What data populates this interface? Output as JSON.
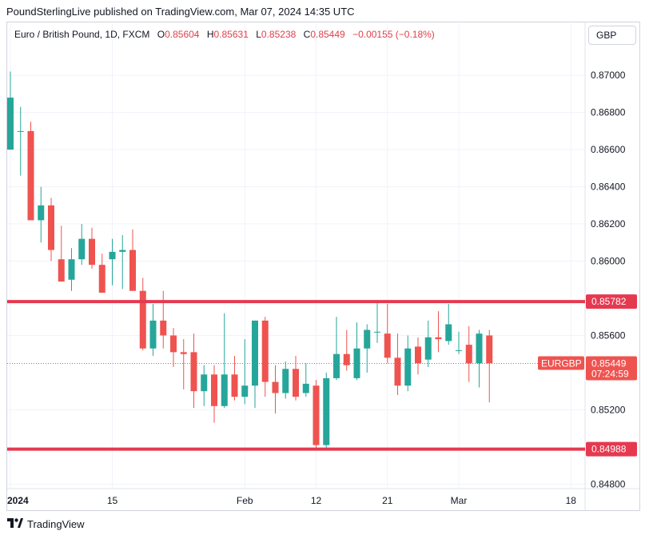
{
  "header": {
    "published": "PoundSterlingLive published on TradingView.com, Mar 07, 2024 14:35 UTC"
  },
  "legend": {
    "symbol": "Euro / British Pound, 1D, FXCM",
    "o_label": "O",
    "o_value": "0.85604",
    "h_label": "H",
    "h_value": "0.85631",
    "l_label": "L",
    "l_value": "0.85238",
    "c_label": "C",
    "c_value": "0.85449",
    "change": "−0.00155 (−0.18%)"
  },
  "currency_button": "GBP",
  "branding": {
    "name": "TradingView"
  },
  "colors": {
    "up": "#26a69a",
    "down": "#ef5350",
    "level": "#e53950",
    "grid": "#f0f3fa",
    "text": "#131722"
  },
  "chart_data": {
    "type": "candlestick",
    "symbol": "EURGBP",
    "ylim": [
      0.8478,
      0.8716
    ],
    "y_ticks": [
      "0.84800",
      "0.85200",
      "0.85600",
      "0.86000",
      "0.86200",
      "0.86400",
      "0.86600",
      "0.86800",
      "0.87000"
    ],
    "x_ticks": [
      {
        "label": "2024",
        "index": 0
      },
      {
        "label": "15",
        "index": 10
      },
      {
        "label": "Feb",
        "index": 23
      },
      {
        "label": "12",
        "index": 30
      },
      {
        "label": "21",
        "index": 37
      },
      {
        "label": "Mar",
        "index": 44
      },
      {
        "label": "18",
        "index": 55
      }
    ],
    "horizontal_levels": [
      {
        "value": 0.85782,
        "label": "0.85782"
      },
      {
        "value": 0.84988,
        "label": "0.84988"
      }
    ],
    "last_price": {
      "value": 0.85449,
      "symbol_label": "EURGBP",
      "price_label": "0.85449",
      "countdown": "07:24:59"
    },
    "candles": [
      {
        "o": 0.866,
        "h": 0.8702,
        "l": 0.866,
        "c": 0.8688
      },
      {
        "o": 0.867,
        "h": 0.8683,
        "l": 0.8646,
        "c": 0.867
      },
      {
        "o": 0.867,
        "h": 0.8675,
        "l": 0.8622,
        "c": 0.8622
      },
      {
        "o": 0.8622,
        "h": 0.864,
        "l": 0.861,
        "c": 0.863
      },
      {
        "o": 0.863,
        "h": 0.8634,
        "l": 0.86,
        "c": 0.8606
      },
      {
        "o": 0.8601,
        "h": 0.8619,
        "l": 0.8589,
        "c": 0.8589
      },
      {
        "o": 0.859,
        "h": 0.8607,
        "l": 0.8584,
        "c": 0.8601
      },
      {
        "o": 0.8601,
        "h": 0.862,
        "l": 0.8598,
        "c": 0.8612
      },
      {
        "o": 0.8612,
        "h": 0.8618,
        "l": 0.8596,
        "c": 0.8598
      },
      {
        "o": 0.8598,
        "h": 0.8604,
        "l": 0.8583,
        "c": 0.8583
      },
      {
        "o": 0.8601,
        "h": 0.8612,
        "l": 0.8587,
        "c": 0.8605
      },
      {
        "o": 0.8605,
        "h": 0.8614,
        "l": 0.8585,
        "c": 0.8606
      },
      {
        "o": 0.8606,
        "h": 0.8617,
        "l": 0.8584,
        "c": 0.8584
      },
      {
        "o": 0.8584,
        "h": 0.8591,
        "l": 0.8552,
        "c": 0.8553
      },
      {
        "o": 0.8553,
        "h": 0.8577,
        "l": 0.8549,
        "c": 0.8568
      },
      {
        "o": 0.8568,
        "h": 0.8584,
        "l": 0.8553,
        "c": 0.856
      },
      {
        "o": 0.856,
        "h": 0.8564,
        "l": 0.8543,
        "c": 0.8551
      },
      {
        "o": 0.8551,
        "h": 0.8558,
        "l": 0.8531,
        "c": 0.855
      },
      {
        "o": 0.8551,
        "h": 0.8561,
        "l": 0.8521,
        "c": 0.853
      },
      {
        "o": 0.853,
        "h": 0.8544,
        "l": 0.8522,
        "c": 0.8539
      },
      {
        "o": 0.8539,
        "h": 0.8544,
        "l": 0.8513,
        "c": 0.8522
      },
      {
        "o": 0.8522,
        "h": 0.8572,
        "l": 0.8521,
        "c": 0.8539
      },
      {
        "o": 0.8539,
        "h": 0.8549,
        "l": 0.8525,
        "c": 0.8527
      },
      {
        "o": 0.8527,
        "h": 0.8558,
        "l": 0.8523,
        "c": 0.8533
      },
      {
        "o": 0.8533,
        "h": 0.8568,
        "l": 0.8521,
        "c": 0.8568
      },
      {
        "o": 0.8568,
        "h": 0.857,
        "l": 0.8527,
        "c": 0.8535
      },
      {
        "o": 0.8535,
        "h": 0.8544,
        "l": 0.8518,
        "c": 0.8529
      },
      {
        "o": 0.8529,
        "h": 0.8546,
        "l": 0.8526,
        "c": 0.8542
      },
      {
        "o": 0.8542,
        "h": 0.8549,
        "l": 0.8525,
        "c": 0.8527
      },
      {
        "o": 0.8529,
        "h": 0.8545,
        "l": 0.8527,
        "c": 0.8534
      },
      {
        "o": 0.8533,
        "h": 0.8536,
        "l": 0.8499,
        "c": 0.8501
      },
      {
        "o": 0.8501,
        "h": 0.854,
        "l": 0.8499,
        "c": 0.8537
      },
      {
        "o": 0.8537,
        "h": 0.857,
        "l": 0.8536,
        "c": 0.855
      },
      {
        "o": 0.855,
        "h": 0.8563,
        "l": 0.8541,
        "c": 0.8544
      },
      {
        "o": 0.8537,
        "h": 0.8567,
        "l": 0.8536,
        "c": 0.8553
      },
      {
        "o": 0.8553,
        "h": 0.8566,
        "l": 0.854,
        "c": 0.8563
      },
      {
        "o": 0.8562,
        "h": 0.8578,
        "l": 0.8556,
        "c": 0.8562
      },
      {
        "o": 0.8561,
        "h": 0.8577,
        "l": 0.8545,
        "c": 0.8548
      },
      {
        "o": 0.8548,
        "h": 0.8561,
        "l": 0.8528,
        "c": 0.8533
      },
      {
        "o": 0.8533,
        "h": 0.856,
        "l": 0.853,
        "c": 0.8553
      },
      {
        "o": 0.8554,
        "h": 0.8559,
        "l": 0.8539,
        "c": 0.8545
      },
      {
        "o": 0.8547,
        "h": 0.8568,
        "l": 0.8543,
        "c": 0.8559
      },
      {
        "o": 0.8559,
        "h": 0.8573,
        "l": 0.8551,
        "c": 0.8558
      },
      {
        "o": 0.8557,
        "h": 0.8577,
        "l": 0.8555,
        "c": 0.8566
      },
      {
        "o": 0.8552,
        "h": 0.8562,
        "l": 0.855,
        "c": 0.8552
      },
      {
        "o": 0.8555,
        "h": 0.8565,
        "l": 0.8535,
        "c": 0.8545
      },
      {
        "o": 0.8545,
        "h": 0.8563,
        "l": 0.8532,
        "c": 0.8561
      },
      {
        "o": 0.856,
        "h": 0.8563,
        "l": 0.8524,
        "c": 0.8545
      }
    ]
  }
}
